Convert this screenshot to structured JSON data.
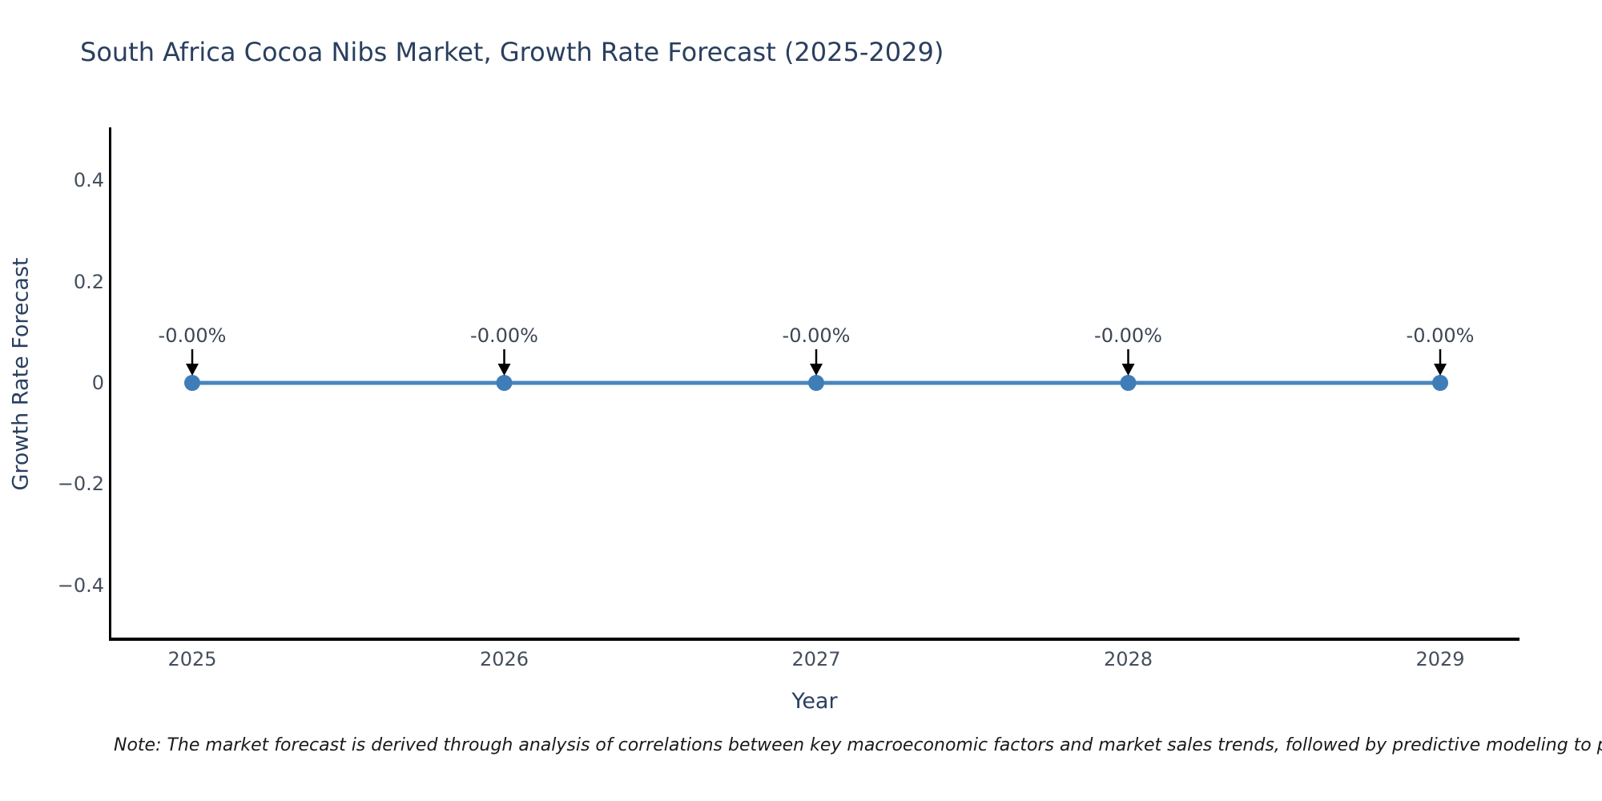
{
  "chart": {
    "title": "South Africa Cocoa Nibs Market, Growth Rate Forecast (2025-2029)",
    "x_axis": {
      "title": "Year"
    },
    "y_axis": {
      "title": "Growth Rate Forecast"
    },
    "note": "Note: The market forecast is derived through analysis of correlations between key macroeconomic factors and market sales trends, followed by predictive modeling to project future sa"
  },
  "chart_data": {
    "type": "line",
    "title": "South Africa Cocoa Nibs Market, Growth Rate Forecast (2025-2029)",
    "xlabel": "Year",
    "ylabel": "Growth Rate Forecast",
    "x": [
      2025,
      2026,
      2027,
      2028,
      2029
    ],
    "x_tick_labels": [
      "2025",
      "2026",
      "2027",
      "2028",
      "2029"
    ],
    "series": [
      {
        "name": "Growth Rate Forecast",
        "values": [
          0,
          0,
          0,
          0,
          0
        ],
        "point_labels": [
          "-0.00%",
          "-0.00%",
          "-0.00%",
          "-0.00%",
          "-0.00%"
        ]
      }
    ],
    "y_ticks": [
      0.4,
      0.2,
      0,
      -0.2,
      -0.4
    ],
    "y_tick_labels": [
      "0.4",
      "0.2",
      "0",
      "−0.2",
      "−0.4"
    ],
    "ylim": [
      -0.5,
      0.5
    ],
    "grid": false,
    "legend": false,
    "annotations": "each point labeled with value and downward black arrow",
    "colors": {
      "line": "#4886bd",
      "marker": "#3f7db8",
      "arrow": "#000000",
      "axis": "#000000",
      "title": "#2a3f5f",
      "tick": "#444f5d"
    }
  }
}
